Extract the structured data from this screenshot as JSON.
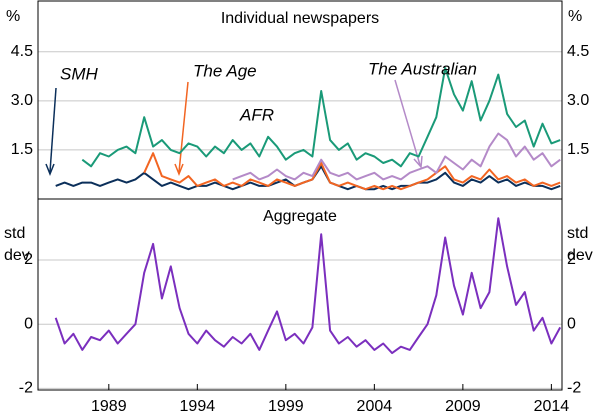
{
  "chart_data": [
    {
      "type": "line",
      "title": "Individual newspapers",
      "unit": "%",
      "x": [
        1986,
        1986.5,
        1987,
        1987.5,
        1988,
        1988.5,
        1989,
        1989.5,
        1990,
        1990.5,
        1991,
        1991.5,
        1992,
        1992.5,
        1993,
        1993.5,
        1994,
        1994.5,
        1995,
        1995.5,
        1996,
        1996.5,
        1997,
        1997.5,
        1998,
        1998.5,
        1999,
        1999.5,
        2000,
        2000.5,
        2001,
        2001.5,
        2002,
        2002.5,
        2003,
        2003.5,
        2004,
        2004.5,
        2005,
        2005.5,
        2006,
        2006.5,
        2007,
        2007.5,
        2008,
        2008.5,
        2009,
        2009.5,
        2010,
        2010.5,
        2011,
        2011.5,
        2012,
        2012.5,
        2013,
        2013.5,
        2014,
        2014.5
      ],
      "xlim": [
        1985,
        2014.6
      ],
      "ylim": [
        0,
        6.05
      ],
      "yticks": [
        1.5,
        {
          "value": 3,
          "label": "3.0"
        },
        4.5
      ],
      "grid": true,
      "series": [
        {
          "name": "SMH",
          "color": "#0b2f5a",
          "values": [
            0.4,
            0.5,
            0.4,
            0.5,
            0.5,
            0.4,
            0.5,
            0.6,
            0.5,
            0.6,
            0.8,
            0.6,
            0.4,
            0.5,
            0.4,
            0.3,
            0.4,
            0.4,
            0.5,
            0.4,
            0.3,
            0.4,
            0.5,
            0.4,
            0.4,
            0.5,
            0.6,
            0.4,
            0.5,
            0.6,
            1.0,
            0.5,
            0.4,
            0.3,
            0.4,
            0.3,
            0.3,
            0.4,
            0.3,
            0.4,
            0.4,
            0.5,
            0.5,
            0.6,
            0.8,
            0.5,
            0.4,
            0.6,
            0.5,
            0.7,
            0.5,
            0.6,
            0.4,
            0.5,
            0.4,
            0.4,
            0.3,
            0.4
          ]
        },
        {
          "name": "AFR",
          "color": "#1a9a78",
          "values": [
            null,
            null,
            null,
            1.2,
            1.0,
            1.4,
            1.3,
            1.5,
            1.6,
            1.4,
            2.5,
            1.6,
            1.8,
            1.5,
            1.4,
            1.7,
            1.6,
            1.3,
            1.6,
            1.4,
            1.8,
            1.5,
            1.7,
            1.3,
            1.9,
            1.6,
            1.2,
            1.4,
            1.5,
            1.3,
            3.3,
            1.8,
            1.5,
            1.7,
            1.2,
            1.4,
            1.3,
            1.1,
            1.2,
            1.0,
            1.4,
            1.3,
            1.9,
            2.5,
            4.0,
            3.2,
            2.7,
            3.6,
            2.4,
            3.0,
            3.8,
            2.6,
            2.2,
            2.4,
            1.6,
            2.3,
            1.7,
            1.8
          ]
        },
        {
          "name": "The Age",
          "color": "#f26522",
          "values": [
            null,
            null,
            null,
            null,
            null,
            null,
            null,
            null,
            null,
            null,
            0.8,
            1.4,
            0.7,
            0.6,
            0.5,
            0.7,
            0.4,
            0.5,
            0.6,
            0.4,
            0.5,
            0.4,
            0.6,
            0.5,
            0.4,
            0.6,
            0.5,
            0.4,
            0.5,
            0.6,
            1.1,
            0.5,
            0.4,
            0.5,
            0.4,
            0.3,
            0.4,
            0.3,
            0.4,
            0.3,
            0.4,
            0.5,
            0.6,
            0.8,
            1.0,
            0.6,
            0.5,
            0.7,
            0.6,
            0.9,
            0.6,
            0.7,
            0.5,
            0.6,
            0.4,
            0.5,
            0.4,
            0.5
          ]
        },
        {
          "name": "The Australian",
          "color": "#b48ac8",
          "values": [
            null,
            null,
            null,
            null,
            null,
            null,
            null,
            null,
            null,
            null,
            null,
            null,
            null,
            null,
            null,
            null,
            null,
            null,
            null,
            null,
            0.6,
            0.7,
            0.8,
            0.6,
            0.7,
            0.9,
            0.7,
            0.6,
            0.8,
            0.7,
            1.2,
            0.8,
            0.7,
            0.8,
            0.6,
            0.7,
            0.8,
            0.6,
            0.7,
            0.6,
            0.8,
            0.9,
            1.0,
            0.8,
            1.3,
            1.1,
            0.9,
            1.2,
            1.0,
            1.6,
            2.0,
            1.8,
            1.3,
            1.6,
            1.2,
            1.4,
            1.0,
            1.2
          ]
        }
      ]
    },
    {
      "type": "line",
      "title": "Aggregate",
      "unit": [
        "std",
        "dev"
      ],
      "x": [
        1986,
        1986.5,
        1987,
        1987.5,
        1988,
        1988.5,
        1989,
        1989.5,
        1990,
        1990.5,
        1991,
        1991.5,
        1992,
        1992.5,
        1993,
        1993.5,
        1994,
        1994.5,
        1995,
        1995.5,
        1996,
        1996.5,
        1997,
        1997.5,
        1998,
        1998.5,
        1999,
        1999.5,
        2000,
        2000.5,
        2001,
        2001.5,
        2002,
        2002.5,
        2003,
        2003.5,
        2004,
        2004.5,
        2005,
        2005.5,
        2006,
        2006.5,
        2007,
        2007.5,
        2008,
        2008.5,
        2009,
        2009.5,
        2010,
        2010.5,
        2011,
        2011.5,
        2012,
        2012.5,
        2013,
        2013.5,
        2014,
        2014.5
      ],
      "xlim": [
        1985,
        2014.6
      ],
      "xticks": [
        1989,
        1994,
        1999,
        2004,
        2009,
        2014
      ],
      "ylim": [
        -2.05,
        3.9
      ],
      "yticks": [
        -2,
        0,
        2
      ],
      "grid": true,
      "series": [
        {
          "name": "Aggregate",
          "color": "#7b2fbe",
          "values": [
            0.2,
            -0.6,
            -0.3,
            -0.8,
            -0.4,
            -0.5,
            -0.2,
            -0.6,
            -0.3,
            0.0,
            1.6,
            2.5,
            0.8,
            1.8,
            0.5,
            -0.3,
            -0.6,
            -0.2,
            -0.5,
            -0.7,
            -0.4,
            -0.6,
            -0.3,
            -0.8,
            -0.2,
            0.4,
            -0.5,
            -0.3,
            -0.6,
            -0.1,
            2.8,
            -0.2,
            -0.6,
            -0.4,
            -0.7,
            -0.5,
            -0.8,
            -0.6,
            -0.9,
            -0.7,
            -0.8,
            -0.4,
            0.0,
            0.9,
            2.7,
            1.2,
            0.3,
            1.6,
            0.5,
            1.0,
            3.3,
            1.8,
            0.6,
            1.0,
            -0.2,
            0.2,
            -0.6,
            -0.1
          ]
        }
      ]
    }
  ]
}
